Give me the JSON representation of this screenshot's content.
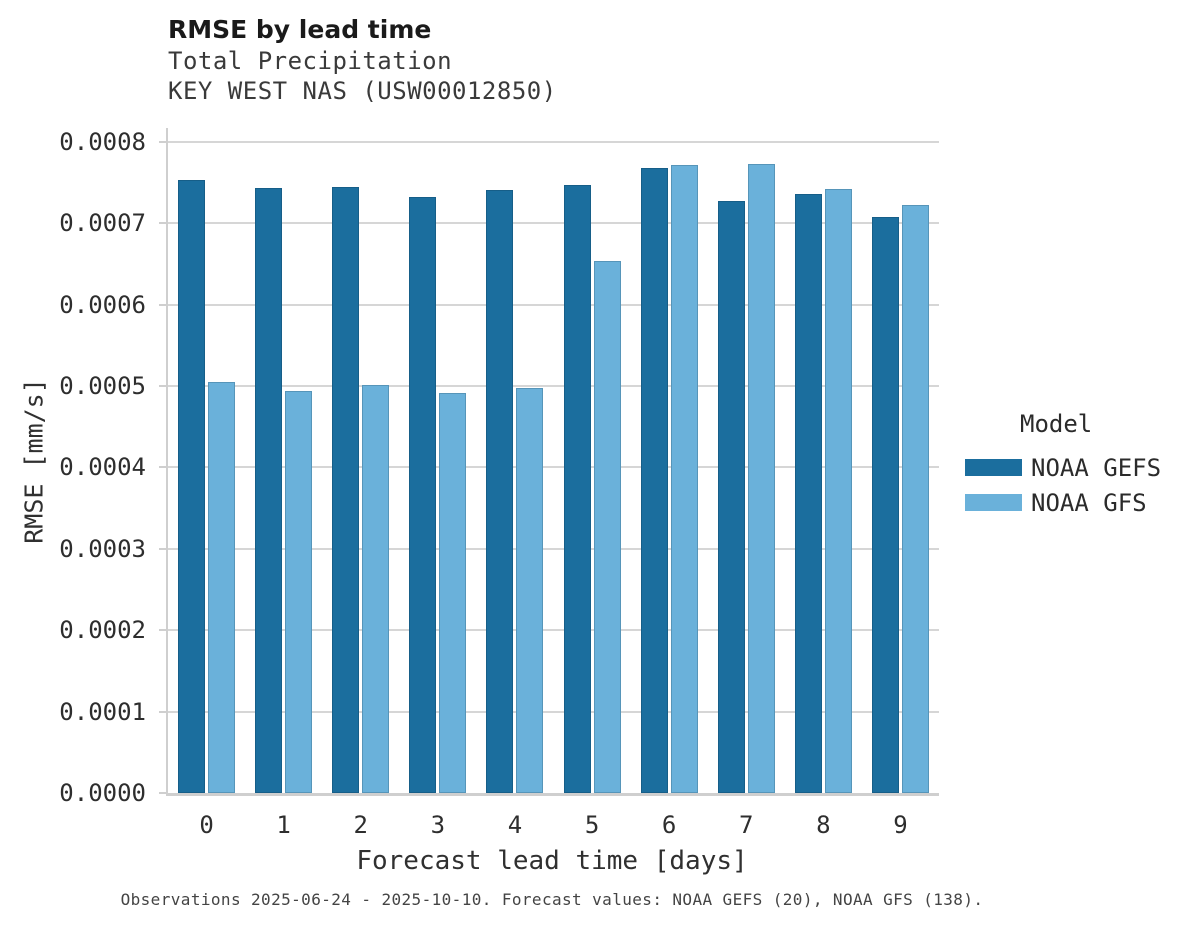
{
  "chart_data": {
    "type": "bar",
    "title": "RMSE by lead time",
    "subtitle": "Total Precipitation",
    "station": "KEY WEST NAS (USW00012850)",
    "xlabel": "Forecast lead time [days]",
    "ylabel": "RMSE [mm/s]",
    "categories": [
      "0",
      "1",
      "2",
      "3",
      "4",
      "5",
      "6",
      "7",
      "8",
      "9"
    ],
    "series": [
      {
        "name": "NOAA GEFS",
        "color": "#1b6e9e",
        "values": [
          0.000753,
          0.000743,
          0.000744,
          0.000732,
          0.000741,
          0.000747,
          0.000768,
          0.000727,
          0.000736,
          0.000708
        ]
      },
      {
        "name": "NOAA GFS",
        "color": "#6ab1da",
        "values": [
          0.000505,
          0.000494,
          0.000501,
          0.000491,
          0.000498,
          0.000653,
          0.000771,
          0.000773,
          0.000742,
          0.000723
        ]
      }
    ],
    "ylim": [
      0,
      0.000817
    ],
    "yticks": [
      0,
      0.0001,
      0.0002,
      0.0003,
      0.0004,
      0.0005,
      0.0006,
      0.0007,
      0.0008
    ],
    "ytick_labels": [
      "0.0000",
      "0.0001",
      "0.0002",
      "0.0003",
      "0.0004",
      "0.0005",
      "0.0006",
      "0.0007",
      "0.0008"
    ],
    "grid": "horizontal light-gray gridlines, no top/right spines",
    "legend": {
      "title": "Model",
      "position": "right"
    },
    "colors": {
      "grid": "#d6d6d6",
      "spine": "#cfcfcf",
      "gefs_blue": "#1b6e9e",
      "gfs_blue": "#6ab1da"
    }
  },
  "footnote": "Observations 2025-06-24 - 2025-10-10. Forecast values: NOAA GEFS (20), NOAA GFS (138)."
}
